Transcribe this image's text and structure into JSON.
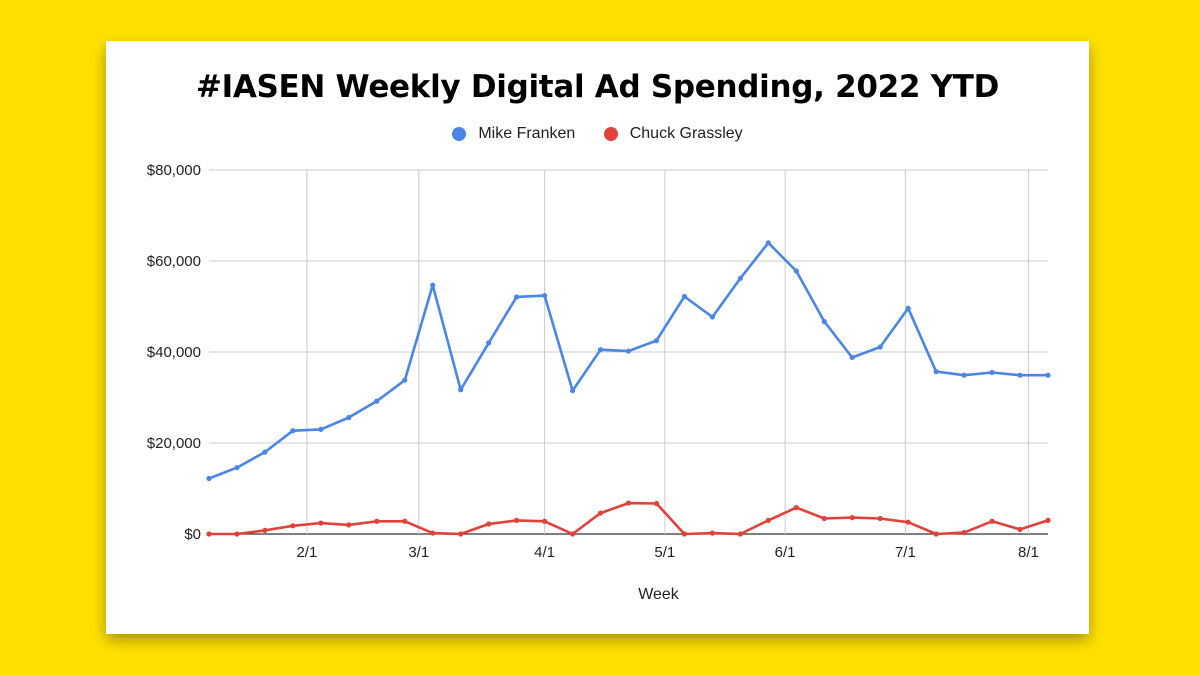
{
  "colors": {
    "background": "#FFE100",
    "card": "#FFFFFF",
    "series_blue": "#4A86E8",
    "series_red": "#E0423A",
    "grid": "#CCCCCC"
  },
  "chart_data": {
    "type": "line",
    "title": "#IASEN Weekly Digital Ad Spending, 2022 YTD",
    "xlabel": "Week",
    "ylabel": "",
    "x_tick_labels": [
      "2/1",
      "3/1",
      "4/1",
      "5/1",
      "6/1",
      "7/1",
      "8/1"
    ],
    "x_tick_weeks": [
      3.5,
      7.5,
      12.0,
      16.3,
      20.6,
      24.9,
      29.3
    ],
    "y_tick_labels": [
      "$0",
      "$20,000",
      "$40,000",
      "$60,000",
      "$80,000"
    ],
    "y_tick_values": [
      0,
      20000,
      40000,
      60000,
      80000
    ],
    "ylim": [
      0,
      80000
    ],
    "xlim": [
      0,
      30
    ],
    "grid": true,
    "legend_position": "top",
    "x": [
      0,
      1,
      2,
      3,
      4,
      5,
      6,
      7,
      8,
      9,
      10,
      11,
      12,
      13,
      14,
      15,
      16,
      17,
      18,
      19,
      20,
      21,
      22,
      23,
      24,
      25,
      26,
      27,
      28,
      29,
      30
    ],
    "series": [
      {
        "name": "Mike Franken",
        "color": "#4A86E8",
        "values": [
          12200,
          14600,
          18000,
          22700,
          23000,
          25600,
          29200,
          33800,
          54700,
          31700,
          42000,
          52100,
          52400,
          31500,
          40500,
          40200,
          42500,
          52200,
          47700,
          56200,
          64000,
          57800,
          46700,
          38800,
          41100,
          49600,
          35700,
          34900,
          35500,
          34900,
          34900
        ]
      },
      {
        "name": "Chuck Grassley",
        "color": "#E0423A",
        "values": [
          0,
          0,
          800,
          1800,
          2400,
          2000,
          2800,
          2800,
          200,
          0,
          2200,
          3000,
          2800,
          0,
          4600,
          6800,
          6700,
          0,
          200,
          0,
          3000,
          5800,
          3400,
          3600,
          3400,
          2600,
          0,
          300,
          2800,
          1000,
          3000
        ]
      }
    ]
  }
}
